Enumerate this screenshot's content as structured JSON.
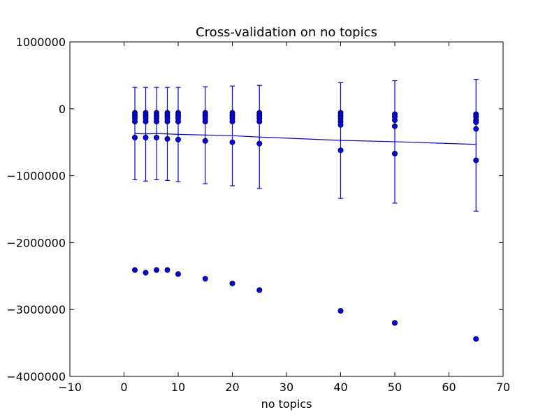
{
  "chart_data": {
    "type": "scatter",
    "title": "Cross-validation on no topics",
    "xlabel": "no topics",
    "ylabel": "",
    "xlim": [
      -10,
      70
    ],
    "ylim": [
      -4000000,
      1000000
    ],
    "xticks": [
      -10,
      0,
      10,
      20,
      30,
      40,
      50,
      60,
      70
    ],
    "yticks": [
      -4000000,
      -3000000,
      -2000000,
      -1000000,
      0,
      1000000
    ],
    "xtick_labels": [
      "−10",
      "0",
      "10",
      "20",
      "30",
      "40",
      "50",
      "60",
      "70"
    ],
    "ytick_labels": [
      "−4000000",
      "−3000000",
      "−2000000",
      "−1000000",
      "0",
      "1000000"
    ],
    "grid": false,
    "colors": {
      "series": "#0000ff",
      "marker_edge": "#000000",
      "axes": "#000000"
    },
    "mean_line": {
      "x": [
        2,
        4,
        6,
        8,
        10,
        15,
        20,
        25,
        40,
        50,
        65
      ],
      "y": [
        -370000,
        -375000,
        -370000,
        -375000,
        -382000,
        -392000,
        -402000,
        -422000,
        -472000,
        -492000,
        -532000
      ]
    },
    "error_bars": {
      "x": [
        2,
        4,
        6,
        8,
        10,
        15,
        20,
        25,
        40,
        50,
        65
      ],
      "upper": [
        320000,
        320000,
        320000,
        320000,
        320000,
        330000,
        340000,
        350000,
        390000,
        420000,
        440000
      ],
      "lower": [
        -1060000,
        -1080000,
        -1060000,
        -1070000,
        -1090000,
        -1120000,
        -1150000,
        -1190000,
        -1340000,
        -1410000,
        -1530000
      ]
    },
    "points": {
      "x": [
        2,
        4,
        6,
        8,
        10,
        15,
        20,
        25,
        40,
        50,
        65
      ],
      "cluster": [
        [
          -60000,
          -100000,
          -140000,
          -190000
        ],
        [
          -60000,
          -100000,
          -140000,
          -190000
        ],
        [
          -60000,
          -100000,
          -140000,
          -190000
        ],
        [
          -60000,
          -100000,
          -140000,
          -190000
        ],
        [
          -60000,
          -100000,
          -140000,
          -190000
        ],
        [
          -60000,
          -100000,
          -140000,
          -190000
        ],
        [
          -60000,
          -100000,
          -140000,
          -190000
        ],
        [
          -60000,
          -100000,
          -140000,
          -190000
        ],
        [
          -60000,
          -100000,
          -140000,
          -190000,
          -240000
        ],
        [
          -80000,
          -120000,
          -170000,
          -260000
        ],
        [
          -80000,
          -120000,
          -170000,
          -200000,
          -300000
        ]
      ],
      "mid": [
        -430000,
        -430000,
        -430000,
        -450000,
        -460000,
        -480000,
        -500000,
        -520000,
        -620000,
        -670000,
        -770000
      ],
      "low": [
        -2410000,
        -2450000,
        -2410000,
        -2410000,
        -2470000,
        -2540000,
        -2610000,
        -2710000,
        -3020000,
        -3200000,
        -3440000
      ]
    }
  }
}
